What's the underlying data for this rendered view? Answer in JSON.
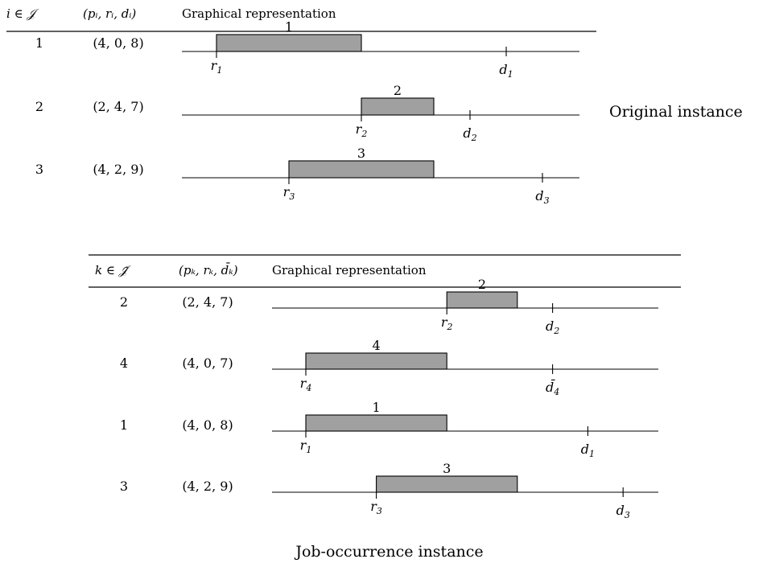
{
  "original": {
    "caption": "Original instance",
    "headers": {
      "index": "i ∈ 𝒥",
      "params": "(pᵢ, rᵢ, dᵢ)",
      "graph": "Graphical representation"
    },
    "rows": [
      {
        "id": "1",
        "params": "(4, 0, 8)",
        "p": 4,
        "r": 0,
        "d": 8,
        "r_label": "r",
        "r_sub": "1",
        "d_label": "d",
        "d_sub": "1"
      },
      {
        "id": "2",
        "params": "(2, 4, 7)",
        "p": 2,
        "r": 4,
        "d": 7,
        "r_label": "r",
        "r_sub": "2",
        "d_label": "d",
        "d_sub": "2"
      },
      {
        "id": "3",
        "params": "(4, 2, 9)",
        "p": 4,
        "r": 2,
        "d": 9,
        "r_label": "r",
        "r_sub": "3",
        "d_label": "d",
        "d_sub": "3"
      }
    ]
  },
  "occurrence": {
    "caption": "Job-occurrence instance",
    "headers": {
      "index": "k ∈ 𝒥̃",
      "params": "(pₖ, rₖ, d̄ₖ)",
      "graph": "Graphical representation"
    },
    "rows": [
      {
        "id": "2",
        "params": "(2, 4, 7)",
        "p": 2,
        "r": 4,
        "d": 7,
        "r_label": "r",
        "r_sub": "2",
        "d_label": "d",
        "d_sub": "2"
      },
      {
        "id": "4",
        "params": "(4, 0, 7)",
        "p": 4,
        "r": 0,
        "d": 7,
        "r_label": "r",
        "r_sub": "4",
        "d_label": "d̄",
        "d_sub": "4"
      },
      {
        "id": "1",
        "params": "(4, 0, 8)",
        "p": 4,
        "r": 0,
        "d": 8,
        "r_label": "r",
        "r_sub": "1",
        "d_label": "d",
        "d_sub": "1"
      },
      {
        "id": "3",
        "params": "(4, 2, 9)",
        "p": 4,
        "r": 2,
        "d": 9,
        "r_label": "r",
        "r_sub": "3",
        "d_label": "d",
        "d_sub": "3"
      }
    ]
  },
  "colors": {
    "bar_fill": "#a0a0a0",
    "line": "#000000"
  }
}
